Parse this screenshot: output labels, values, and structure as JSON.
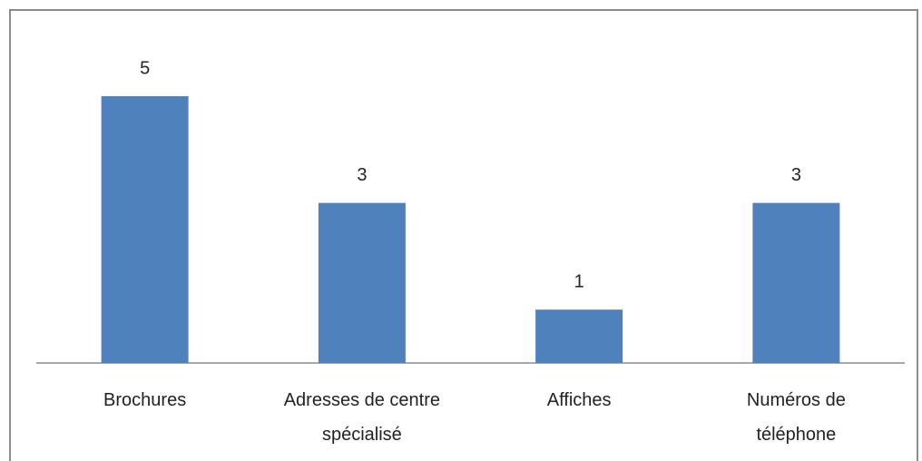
{
  "chart_data": {
    "type": "bar",
    "categories": [
      "Brochures",
      "Adresses de centre\nspécialisé",
      "Affiches",
      "Numéros de\ntéléphone"
    ],
    "values": [
      5,
      3,
      1,
      3
    ],
    "color": "#4f81bd"
  }
}
